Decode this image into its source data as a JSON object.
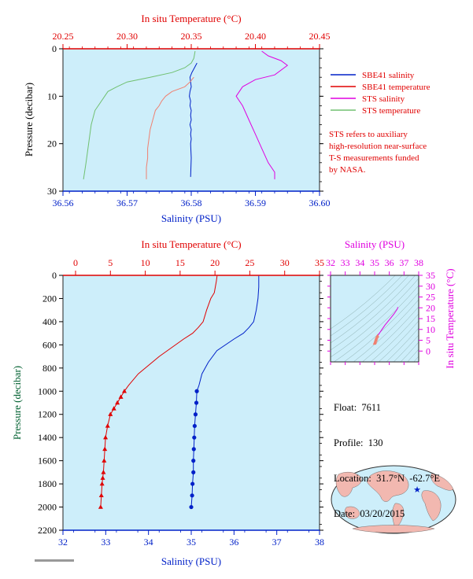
{
  "colors": {
    "red": "#e00000",
    "blue": "#0020c8",
    "magenta": "#e000e0",
    "green": "#70c070",
    "salmon": "#f08070",
    "panel_bg": "#cdeefa",
    "ylabel_green": "#006030"
  },
  "top_panel": {
    "top_axis_title": "In situ Temperature (°C)",
    "bottom_axis_title": "Salinity (PSU)",
    "y_axis_title": "Pressure (decibar)",
    "temp_ticks": [
      "20.25",
      "20.30",
      "20.35",
      "20.40",
      "20.45"
    ],
    "sal_ticks": [
      "36.56",
      "36.57",
      "36.58",
      "36.59",
      "36.60"
    ],
    "pres_ticks": [
      "0",
      "10",
      "20",
      "30"
    ],
    "legend": [
      {
        "label": "SBE41 salinity",
        "color": "#0020c8"
      },
      {
        "label": "SBE41 temperature",
        "color": "#e00000"
      },
      {
        "label": "STS salinity",
        "color": "#e000e0"
      },
      {
        "label": "STS temperature",
        "color": "#70c070"
      }
    ],
    "note": [
      "STS refers to auxiliary",
      "high-resolution near-surface",
      "T-S measurements funded",
      "by NASA."
    ]
  },
  "main_panel": {
    "top_axis_title": "In situ Temperature (°C)",
    "bottom_axis_title": "Salinity (PSU)",
    "y_axis_title": "Pressure (decibar)",
    "temp_ticks": [
      "0",
      "5",
      "10",
      "15",
      "20",
      "25",
      "30",
      "35"
    ],
    "sal_ticks": [
      "32",
      "33",
      "34",
      "35",
      "36",
      "37",
      "38"
    ],
    "pres_ticks": [
      "0",
      "200",
      "400",
      "600",
      "800",
      "1000",
      "1200",
      "1400",
      "1600",
      "1800",
      "2000",
      "2200"
    ]
  },
  "ts_panel": {
    "top_axis_title": "Salinity (PSU)",
    "right_axis_title": "In situ Temperature (°C)",
    "sal_ticks": [
      "32",
      "33",
      "34",
      "35",
      "36",
      "37",
      "38"
    ],
    "temp_ticks": [
      "35",
      "30",
      "25",
      "20",
      "15",
      "10",
      "5",
      "0"
    ]
  },
  "info": {
    "float_label": "Float:",
    "float_value": "7611",
    "profile_label": "Profile:",
    "profile_value": "130",
    "location_label": "Location:",
    "location_value": "31.7°N  -62.7°E",
    "date_label": "Date:",
    "date_value": "03/20/2015"
  },
  "chart_data": [
    {
      "type": "line",
      "title": "",
      "xlabel": "Salinity (PSU)",
      "x2label": "In situ Temperature (°C)",
      "ylabel": "Pressure (decibar)",
      "xlim": [
        36.56,
        36.6
      ],
      "x2lim": [
        20.25,
        20.45
      ],
      "ylim": [
        30,
        0
      ],
      "legend_position": "right",
      "series": [
        {
          "name": "SBE41 salinity",
          "axis": "salinity",
          "x": [
            36.5809,
            36.5805,
            36.5801,
            36.5798,
            36.5799,
            36.58,
            36.5798,
            36.5797,
            36.5799,
            36.5798,
            36.58,
            36.5799,
            36.58,
            36.5798,
            36.58,
            36.5799,
            36.58,
            36.5799,
            36.58,
            36.5799
          ],
          "y": [
            3,
            4,
            5,
            6,
            7,
            8,
            9,
            10,
            11,
            12,
            13,
            14,
            15,
            16,
            17,
            18,
            19,
            20,
            23,
            27
          ]
        },
        {
          "name": "SBE41 temperature",
          "axis": "temperature",
          "x": [
            20.352,
            20.349,
            20.345,
            20.335,
            20.33,
            20.327,
            20.325,
            20.322,
            20.32,
            20.318,
            20.317,
            20.316,
            20.316,
            20.315,
            20.315
          ],
          "y": [
            6,
            7,
            8,
            9,
            10,
            11,
            12,
            13,
            15,
            17,
            19,
            21,
            23,
            25,
            27.5
          ]
        },
        {
          "name": "STS salinity",
          "axis": "salinity",
          "x": [
            36.591,
            36.592,
            36.594,
            36.595,
            36.593,
            36.59,
            36.588,
            36.587,
            36.588,
            36.589,
            36.59,
            36.591,
            36.592,
            36.593,
            36.593
          ],
          "y": [
            0.5,
            1.5,
            2.5,
            3.5,
            5.5,
            6.5,
            8,
            10,
            12,
            15,
            18,
            21,
            24,
            26,
            27.5
          ]
        },
        {
          "name": "STS temperature",
          "axis": "temperature",
          "x": [
            20.353,
            20.352,
            20.35,
            20.345,
            20.335,
            20.318,
            20.3,
            20.292,
            20.285,
            20.28,
            20.275,
            20.272,
            20.27,
            20.268,
            20.266
          ],
          "y": [
            0.5,
            2,
            3,
            4,
            5,
            6,
            7,
            8,
            9,
            11,
            13,
            16,
            20,
            24,
            27.5
          ]
        }
      ]
    },
    {
      "type": "line",
      "title": "",
      "xlabel": "Salinity (PSU)",
      "x2label": "In situ Temperature (°C)",
      "ylabel": "Pressure (decibar)",
      "xlim": [
        32,
        38
      ],
      "x2lim": [
        0,
        35
      ],
      "ylim": [
        2200,
        0
      ],
      "series": [
        {
          "axis": "temperature",
          "x": [
            20.3,
            20.2,
            19.9,
            19.4,
            18.8,
            18.3,
            17.6,
            16.8,
            15.5,
            12.0,
            9.0,
            7.6,
            7.0,
            6.5,
            6.0,
            5.5,
            5.0,
            4.6,
            4.3,
            4.2,
            4.1,
            4.0,
            3.9,
            3.8,
            3.7,
            3.6
          ],
          "y": [
            5,
            50,
            150,
            200,
            300,
            400,
            450,
            500,
            550,
            700,
            850,
            950,
            1000,
            1050,
            1100,
            1150,
            1200,
            1300,
            1400,
            1500,
            1600,
            1700,
            1750,
            1800,
            1900,
            2000
          ]
        },
        {
          "axis": "salinity",
          "x": [
            36.58,
            36.58,
            36.56,
            36.52,
            36.46,
            36.35,
            36.22,
            36.0,
            35.6,
            35.4,
            35.25,
            35.18,
            35.13,
            35.12,
            35.1,
            35.08,
            35.07,
            35.06,
            35.05,
            35.05,
            35.03,
            35.02,
            35.0
          ],
          "y": [
            5,
            100,
            200,
            300,
            400,
            450,
            500,
            550,
            650,
            750,
            850,
            950,
            1000,
            1100,
            1200,
            1300,
            1400,
            1500,
            1600,
            1700,
            1800,
            1900,
            2000
          ]
        }
      ]
    },
    {
      "type": "line",
      "title": "",
      "xlabel": "Salinity (PSU)",
      "ylabel": "In situ Temperature (°C)",
      "xlim": [
        32,
        38
      ],
      "ylim": [
        -5,
        35
      ],
      "series": [
        {
          "axis": "ts",
          "x": [
            36.58,
            36.55,
            36.45,
            36.3,
            36.0,
            35.7,
            35.5,
            35.4,
            35.3,
            35.2,
            35.15,
            35.12,
            35.1,
            35.08,
            35.05,
            35.03,
            35.0
          ],
          "y": [
            20.3,
            19.5,
            18.5,
            17.0,
            14.5,
            12.0,
            10.0,
            9.0,
            8.0,
            7.0,
            6.5,
            6.0,
            5.5,
            5.0,
            4.5,
            4.0,
            3.6
          ]
        }
      ]
    }
  ]
}
